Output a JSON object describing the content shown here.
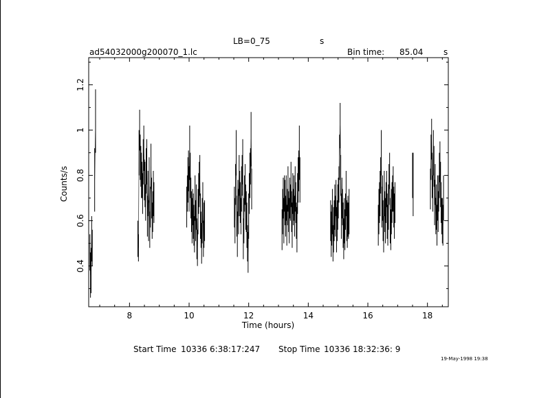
{
  "header": {
    "source_label": "LB=0_75",
    "source_unit": "s",
    "file_name": "ad54032000g200070_1.lc",
    "bin_time_label": "Bin time:",
    "bin_time_value": "85.04",
    "bin_time_unit": "s"
  },
  "footer": {
    "start_label": "Start Time",
    "start_value": "10336  6:38:17:247",
    "stop_label": "Stop Time",
    "stop_value": "10336 18:32:36:  9",
    "timestamp": "19-May-1998 19:38"
  },
  "colors": {
    "line": "#000000",
    "background": "#ffffff"
  },
  "chart_data": {
    "type": "scatter",
    "xlabel": "Time (hours)",
    "ylabel": "Counts/s",
    "xlim": [
      6.63,
      18.7
    ],
    "ylim": [
      0.22,
      1.32
    ],
    "xticks": [
      8,
      10,
      12,
      14,
      16,
      18
    ],
    "yticks": [
      0.4,
      0.6,
      0.8,
      1,
      1.2
    ],
    "yticklabels": [
      "0.4",
      "0.6",
      "0.8",
      "1",
      "1.2"
    ],
    "grid": false,
    "segments": [
      {
        "x": [
          6.67,
          6.69,
          6.71,
          6.73,
          6.75
        ],
        "y": [
          0.46,
          0.36,
          0.38,
          0.52,
          0.48
        ],
        "err": [
          0.08,
          0.1,
          0.1,
          0.1,
          0.08
        ]
      },
      {
        "x": [
          6.83,
          6.86
        ],
        "y": [
          0.78,
          1.04
        ],
        "err": [
          0.14,
          0.14
        ]
      },
      {
        "x": [
          8.28,
          8.3,
          8.32,
          8.34,
          8.36,
          8.38,
          8.4,
          8.42,
          8.44,
          8.46,
          8.48,
          8.5,
          8.52,
          8.54,
          8.56,
          8.58,
          8.6,
          8.62,
          8.64,
          8.66,
          8.68,
          8.7,
          8.72,
          8.74,
          8.76,
          8.78,
          8.8,
          8.82
        ],
        "y": [
          0.52,
          0.48,
          0.9,
          1.0,
          0.88,
          0.84,
          0.8,
          0.78,
          0.72,
          0.86,
          0.92,
          0.78,
          0.76,
          0.68,
          0.82,
          0.86,
          0.62,
          0.72,
          0.6,
          0.78,
          0.56,
          0.66,
          0.84,
          0.7,
          0.6,
          0.64,
          0.72,
          0.68
        ],
        "err": [
          0.08,
          0.06,
          0.1,
          0.09,
          0.1,
          0.09,
          0.1,
          0.08,
          0.09,
          0.1,
          0.1,
          0.09,
          0.1,
          0.08,
          0.1,
          0.1,
          0.09,
          0.1,
          0.09,
          0.1,
          0.08,
          0.09,
          0.1,
          0.09,
          0.08,
          0.09,
          0.1,
          0.09
        ]
      },
      {
        "x": [
          9.92,
          9.94,
          9.96,
          9.98,
          10.0,
          10.02,
          10.04,
          10.06,
          10.08,
          10.1,
          10.12,
          10.14,
          10.16,
          10.18,
          10.2,
          10.22,
          10.24,
          10.26,
          10.28,
          10.3,
          10.32,
          10.34,
          10.36,
          10.38,
          10.4,
          10.42,
          10.44,
          10.46,
          10.48,
          10.5,
          10.52
        ],
        "y": [
          0.66,
          0.72,
          0.78,
          0.82,
          0.74,
          0.9,
          0.8,
          0.7,
          0.64,
          0.6,
          0.66,
          0.62,
          0.58,
          0.54,
          0.7,
          0.6,
          0.66,
          0.52,
          0.48,
          0.64,
          0.72,
          0.76,
          0.8,
          0.62,
          0.56,
          0.5,
          0.6,
          0.68,
          0.52,
          0.58,
          0.6
        ],
        "err": [
          0.09,
          0.08,
          0.1,
          0.09,
          0.1,
          0.12,
          0.1,
          0.09,
          0.09,
          0.1,
          0.08,
          0.1,
          0.09,
          0.08,
          0.1,
          0.09,
          0.1,
          0.09,
          0.08,
          0.1,
          0.09,
          0.1,
          0.09,
          0.1,
          0.08,
          0.09,
          0.1,
          0.09,
          0.08,
          0.1,
          0.09
        ]
      },
      {
        "x": [
          11.52,
          11.54,
          11.56,
          11.58,
          11.6,
          11.62,
          11.64,
          11.66,
          11.68,
          11.7,
          11.72,
          11.74,
          11.76,
          11.78,
          11.8,
          11.82,
          11.84,
          11.86,
          11.88,
          11.9,
          11.92,
          11.94,
          11.96,
          11.98,
          12.0,
          12.02,
          12.04,
          12.06,
          12.08,
          12.1
        ],
        "y": [
          0.66,
          0.6,
          0.76,
          0.9,
          0.62,
          0.54,
          0.7,
          0.64,
          0.8,
          0.72,
          0.68,
          0.62,
          0.74,
          0.8,
          0.86,
          0.52,
          0.6,
          0.72,
          0.76,
          0.66,
          0.64,
          0.58,
          0.5,
          0.46,
          0.62,
          0.72,
          0.8,
          0.84,
          0.96,
          0.74
        ],
        "err": [
          0.09,
          0.1,
          0.09,
          0.1,
          0.09,
          0.1,
          0.08,
          0.1,
          0.09,
          0.1,
          0.09,
          0.08,
          0.1,
          0.09,
          0.1,
          0.09,
          0.1,
          0.08,
          0.09,
          0.1,
          0.09,
          0.1,
          0.08,
          0.09,
          0.1,
          0.09,
          0.1,
          0.08,
          0.12,
          0.09
        ]
      },
      {
        "x": [
          13.12,
          13.14,
          13.16,
          13.18,
          13.2,
          13.22,
          13.24,
          13.26,
          13.28,
          13.3,
          13.32,
          13.34,
          13.36,
          13.38,
          13.4,
          13.42,
          13.44,
          13.46,
          13.48,
          13.5,
          13.52,
          13.54,
          13.56,
          13.58,
          13.6,
          13.62,
          13.64,
          13.66,
          13.68,
          13.7,
          13.72
        ],
        "y": [
          0.56,
          0.64,
          0.7,
          0.6,
          0.72,
          0.68,
          0.62,
          0.7,
          0.58,
          0.66,
          0.74,
          0.64,
          0.6,
          0.7,
          0.68,
          0.76,
          0.64,
          0.58,
          0.72,
          0.66,
          0.7,
          0.62,
          0.74,
          0.68,
          0.6,
          0.56,
          0.72,
          0.78,
          0.82,
          0.9,
          0.78
        ],
        "err": [
          0.09,
          0.1,
          0.09,
          0.1,
          0.08,
          0.1,
          0.09,
          0.1,
          0.09,
          0.08,
          0.1,
          0.09,
          0.1,
          0.09,
          0.08,
          0.1,
          0.09,
          0.1,
          0.09,
          0.08,
          0.1,
          0.09,
          0.1,
          0.09,
          0.08,
          0.1,
          0.09,
          0.1,
          0.09,
          0.12,
          0.1
        ]
      },
      {
        "x": [
          14.75,
          14.77,
          14.79,
          14.81,
          14.83,
          14.85,
          14.87,
          14.89,
          14.91,
          14.93,
          14.95,
          14.97,
          14.99,
          15.01,
          15.03,
          15.05,
          15.07,
          15.09,
          15.11,
          15.13,
          15.15,
          15.17,
          15.19,
          15.21,
          15.23,
          15.25,
          15.27,
          15.29,
          15.31,
          15.33,
          15.35,
          15.37
        ],
        "y": [
          0.6,
          0.54,
          0.58,
          0.64,
          0.5,
          0.56,
          0.6,
          0.66,
          0.62,
          0.7,
          0.56,
          0.6,
          0.66,
          0.7,
          0.76,
          0.88,
          1.02,
          0.8,
          0.62,
          0.7,
          0.66,
          0.58,
          0.52,
          0.6,
          0.56,
          0.64,
          0.72,
          0.6,
          0.58,
          0.62,
          0.6,
          0.64
        ],
        "err": [
          0.09,
          0.1,
          0.09,
          0.1,
          0.08,
          0.1,
          0.09,
          0.1,
          0.09,
          0.08,
          0.1,
          0.09,
          0.1,
          0.09,
          0.08,
          0.1,
          0.1,
          0.09,
          0.1,
          0.09,
          0.08,
          0.1,
          0.09,
          0.1,
          0.09,
          0.08,
          0.1,
          0.09,
          0.1,
          0.09,
          0.08,
          0.1
        ]
      },
      {
        "x": [
          16.35,
          16.37,
          16.39,
          16.41,
          16.43,
          16.45,
          16.47,
          16.49,
          16.51,
          16.53,
          16.55,
          16.57,
          16.59,
          16.61,
          16.63,
          16.65,
          16.67,
          16.69,
          16.71,
          16.73,
          16.75,
          16.77,
          16.79,
          16.81,
          16.83,
          16.85,
          16.87,
          16.89,
          16.91
        ],
        "y": [
          0.58,
          0.64,
          0.68,
          0.72,
          0.8,
          0.9,
          0.66,
          0.7,
          0.6,
          0.54,
          0.72,
          0.64,
          0.6,
          0.68,
          0.74,
          0.62,
          0.58,
          0.66,
          0.76,
          0.82,
          0.6,
          0.56,
          0.64,
          0.68,
          0.72,
          0.74,
          0.66,
          0.62,
          0.68
        ],
        "err": [
          0.09,
          0.1,
          0.09,
          0.1,
          0.08,
          0.1,
          0.09,
          0.1,
          0.09,
          0.08,
          0.1,
          0.09,
          0.1,
          0.09,
          0.08,
          0.1,
          0.09,
          0.1,
          0.09,
          0.08,
          0.1,
          0.09,
          0.1,
          0.09,
          0.08,
          0.1,
          0.09,
          0.1,
          0.09
        ]
      },
      {
        "x": [
          17.5
        ],
        "y": [
          0.8
        ],
        "err": [
          0.1
        ]
      },
      {
        "x": [
          17.52
        ],
        "y": [
          0.76
        ],
        "err": [
          0.14
        ]
      },
      {
        "x": [
          18.1,
          18.12,
          18.14,
          18.16,
          18.18,
          18.2,
          18.22,
          18.24,
          18.26,
          18.28,
          18.3,
          18.32,
          18.34,
          18.36,
          18.38,
          18.4,
          18.42,
          18.44,
          18.46,
          18.48,
          18.5,
          18.52,
          18.54
        ],
        "y": [
          0.74,
          0.88,
          0.96,
          0.8,
          0.72,
          0.9,
          0.84,
          0.68,
          0.76,
          0.62,
          0.66,
          0.58,
          0.7,
          0.64,
          0.72,
          0.8,
          0.86,
          0.76,
          0.68,
          0.62,
          0.6,
          0.58,
          0.7
        ],
        "err": [
          0.09,
          0.1,
          0.09,
          0.1,
          0.08,
          0.1,
          0.09,
          0.1,
          0.09,
          0.08,
          0.1,
          0.09,
          0.1,
          0.09,
          0.08,
          0.1,
          0.09,
          0.1,
          0.09,
          0.08,
          0.1,
          0.09,
          0.1
        ]
      }
    ]
  }
}
